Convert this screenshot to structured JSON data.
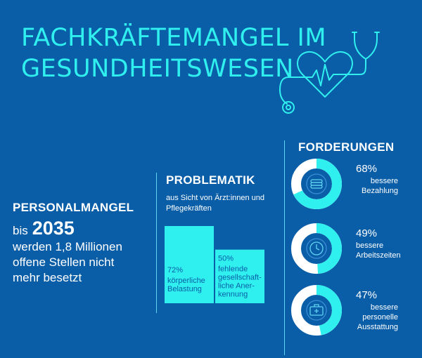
{
  "title": {
    "line1": "FACHKRÄFTEMANGEL IM",
    "line2": "GESUNDHEITSWESEN"
  },
  "colors": {
    "background": "#0a5ea8",
    "accent": "#2ff0ee",
    "line": "#5fd3f0"
  },
  "icons": {
    "header": "heart-stethoscope-icon",
    "demands": [
      "coins-icon",
      "clock-icon",
      "medical-kit-icon"
    ]
  },
  "personalmangel": {
    "heading": "PERSONALMANGEL",
    "prefix": "bis",
    "year": "2035",
    "line1": "werden 1,8 Millionen",
    "line2": "offene Stellen nicht",
    "line3": "mehr besetzt"
  },
  "problematik": {
    "heading": "PROBLEMATIK",
    "sub1": "aus Sicht von Ärzt:innen und",
    "sub2": "Pflegekräften"
  },
  "forderungen": {
    "heading": "FORDERUNGEN"
  },
  "chart_data": [
    {
      "type": "bar",
      "title": "PROBLEMATIK",
      "subtitle": "aus Sicht von Ärzt:innen und Pflegekräften",
      "unit": "%",
      "categories": [
        "körperliche Belastung",
        "fehlende gesellschaftliche Anerkennung"
      ],
      "values": [
        72,
        50
      ],
      "labels": [
        {
          "pct": "72%",
          "lines": [
            "körperliche",
            "Belastung"
          ]
        },
        {
          "pct": "50%",
          "lines": [
            "fehlende",
            "gesellschaft-",
            "liche Aner-",
            "kennung"
          ]
        }
      ]
    },
    {
      "type": "pie",
      "title": "FORDERUNGEN",
      "unit": "%",
      "categories": [
        "bessere Bezahlung",
        "bessere Arbeitszeiten",
        "bessere personelle Ausstattung"
      ],
      "values": [
        68,
        49,
        47
      ],
      "labels": [
        {
          "pct": "68%",
          "lines": [
            "bessere",
            "Bezahlung"
          ]
        },
        {
          "pct": "49%",
          "lines": [
            "bessere",
            "Arbeitszeiten"
          ]
        },
        {
          "pct": "47%",
          "lines": [
            "bessere",
            "personelle",
            "Ausstattung"
          ]
        }
      ]
    }
  ]
}
